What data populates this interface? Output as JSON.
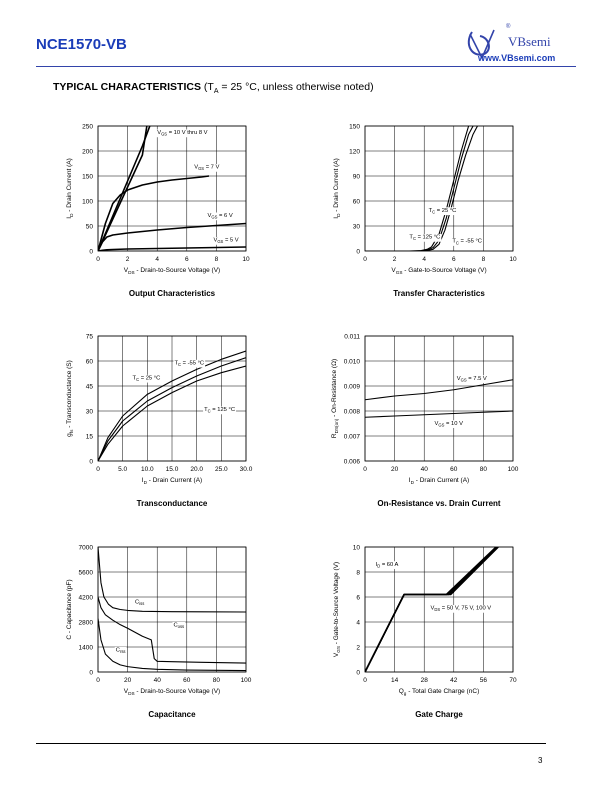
{
  "header": {
    "part_number": "NCE1570-VB",
    "logo_brand": "VBsemi",
    "logo_url": "www.VBsemi.com",
    "registered_mark": "®"
  },
  "section": {
    "title": "TYPICAL CHARACTERISTICS",
    "condition_prefix": "(T",
    "condition_sub": "A",
    "condition_suffix": " = 25 °C, unless otherwise noted)"
  },
  "footer": {
    "page_number": "3"
  },
  "colors": {
    "curve": "#000000",
    "brand": "#1a3cb8",
    "logo": "#3344aa"
  },
  "chart_data": [
    {
      "id": "output",
      "type": "line",
      "title": "Output Characteristics",
      "xlabel": {
        "main": "V",
        "sub": "DS",
        "rest": " - Drain-to-Source Voltage (V)"
      },
      "ylabel": {
        "main": "I",
        "sub": "D",
        "rest": " - Drain Current (A)"
      },
      "xlim": [
        0,
        10
      ],
      "ylim": [
        0,
        250
      ],
      "xticks": [
        0,
        2,
        4,
        6,
        8,
        10
      ],
      "yticks": [
        0,
        50,
        100,
        150,
        200,
        250
      ],
      "grid": true,
      "series": [
        {
          "name": "VGS = 10 V thru 8 V",
          "x": [
            0,
            0.5,
            1,
            1.5,
            2,
            2.5,
            3,
            3.5
          ],
          "y": [
            0,
            35,
            70,
            105,
            140,
            175,
            210,
            250
          ]
        },
        {
          "name": "VGS = 8 V",
          "x": [
            0,
            0.5,
            1,
            1.5,
            2,
            2.5,
            3,
            3.3
          ],
          "y": [
            0,
            32,
            64,
            96,
            128,
            160,
            192,
            250
          ]
        },
        {
          "name": "VGS = 7 V",
          "x": [
            0,
            0.5,
            1,
            1.5,
            2,
            3,
            4,
            5,
            6,
            7,
            7.5
          ],
          "y": [
            0,
            55,
            95,
            112,
            122,
            132,
            138,
            142,
            145,
            148,
            150
          ]
        },
        {
          "name": "VGS = 6 V",
          "x": [
            0,
            0.3,
            0.6,
            1,
            2,
            4,
            6,
            8,
            10
          ],
          "y": [
            0,
            18,
            28,
            32,
            36,
            42,
            47,
            51,
            55
          ]
        },
        {
          "name": "VGS = 5 V",
          "x": [
            0,
            0.3,
            0.6,
            1,
            2,
            4,
            6,
            8,
            10
          ],
          "y": [
            0,
            1.5,
            2.5,
            3,
            4,
            5,
            6,
            7,
            8
          ]
        }
      ],
      "annotations": [
        {
          "main": "V",
          "sub": "GS",
          "rest": " = 10 V thru 8 V",
          "x": 4.0,
          "y": 234
        },
        {
          "main": "V",
          "sub": "GS",
          "rest": " = 7 V",
          "x": 6.5,
          "y": 165
        },
        {
          "main": "V",
          "sub": "GS",
          "rest": " = 6 V",
          "x": 7.4,
          "y": 68
        },
        {
          "main": "V",
          "sub": "GS",
          "rest": " = 5 V",
          "x": 7.8,
          "y": 19
        }
      ]
    },
    {
      "id": "transfer",
      "type": "line",
      "title": "Transfer Characteristics",
      "xlabel": {
        "main": "V",
        "sub": "GS",
        "rest": " - Gate-to-Source Voltage (V)"
      },
      "ylabel": {
        "main": "I",
        "sub": "D",
        "rest": " - Drain Current (A)"
      },
      "xlim": [
        0,
        10
      ],
      "ylim": [
        0,
        150
      ],
      "xticks": [
        0,
        2,
        4,
        6,
        8,
        10
      ],
      "yticks": [
        0,
        30,
        60,
        90,
        120,
        150
      ],
      "grid": true,
      "series": [
        {
          "name": "TC = 125 °C",
          "x": [
            0,
            3,
            3.8,
            4.2,
            4.5,
            5,
            5.5,
            6,
            6.5,
            7
          ],
          "y": [
            0,
            0,
            0.5,
            2,
            5,
            20,
            50,
            85,
            120,
            150
          ]
        },
        {
          "name": "TC = 25 °C",
          "x": [
            0,
            3.6,
            4.2,
            4.6,
            5,
            5.5,
            6,
            6.5,
            7,
            7.3
          ],
          "y": [
            0,
            0,
            1,
            4,
            13,
            40,
            75,
            110,
            140,
            150
          ]
        },
        {
          "name": "TC = -55 °C",
          "x": [
            0,
            4,
            4.6,
            5,
            5.4,
            5.8,
            6.3,
            6.8,
            7.3,
            7.6
          ],
          "y": [
            0,
            0,
            2,
            8,
            25,
            50,
            85,
            115,
            140,
            150
          ]
        }
      ],
      "annotations": [
        {
          "main": "T",
          "sub": "C",
          "rest": " = 25 °C",
          "x": 4.3,
          "y": 47
        },
        {
          "main": "T",
          "sub": "C",
          "rest": " = 125 °C",
          "x": 3.0,
          "y": 15
        },
        {
          "main": "T",
          "sub": "C",
          "rest": " = -55 °C",
          "x": 5.9,
          "y": 10
        }
      ]
    },
    {
      "id": "transconductance",
      "type": "line",
      "title": "Transconductance",
      "xlabel": {
        "main": "I",
        "sub": "D",
        "rest": " - Drain Current (A)"
      },
      "ylabel": {
        "main": "g",
        "sub": "fs",
        "rest": " - Transconductance (S)"
      },
      "xlim": [
        0,
        30
      ],
      "ylim": [
        0,
        75
      ],
      "xticks": [
        0,
        5,
        10,
        15,
        20,
        25,
        30
      ],
      "xtick_labels": [
        "0",
        "5.0",
        "10.0",
        "15.0",
        "20.0",
        "25.0",
        "30.0"
      ],
      "yticks": [
        0,
        15,
        30,
        45,
        60,
        75
      ],
      "grid": true,
      "series": [
        {
          "name": "TC = -55 °C",
          "x": [
            0,
            2,
            5,
            10,
            15,
            20,
            25,
            30
          ],
          "y": [
            0,
            14,
            27,
            40,
            48,
            55,
            61,
            66
          ]
        },
        {
          "name": "TC = 25 °C",
          "x": [
            0,
            2,
            5,
            10,
            15,
            20,
            25,
            30
          ],
          "y": [
            0,
            12,
            24,
            36,
            44,
            51,
            57,
            62
          ]
        },
        {
          "name": "TC = 125 °C",
          "x": [
            0,
            2,
            5,
            10,
            15,
            20,
            25,
            30
          ],
          "y": [
            0,
            10,
            21,
            33,
            41,
            48,
            53,
            57
          ]
        }
      ],
      "annotations": [
        {
          "main": "T",
          "sub": "C",
          "rest": " = -55 °C",
          "x": 15.5,
          "y": 58
        },
        {
          "main": "T",
          "sub": "C",
          "rest": " = 25 °C",
          "x": 7.0,
          "y": 49
        },
        {
          "main": "T",
          "sub": "C",
          "rest": " = 125 °C",
          "x": 21.5,
          "y": 30
        }
      ]
    },
    {
      "id": "on_resistance",
      "type": "line",
      "title": "On-Resistance vs. Drain Current",
      "xlabel": {
        "main": "I",
        "sub": "D",
        "rest": " - Drain Current (A)"
      },
      "ylabel": {
        "main": "R",
        "sub": "DS(on)",
        "rest": " - On-Resistance (Ω)"
      },
      "xlim": [
        0,
        100
      ],
      "ylim": [
        0.006,
        0.011
      ],
      "xticks": [
        0,
        20,
        40,
        60,
        80,
        100
      ],
      "yticks": [
        0.006,
        0.007,
        0.008,
        0.009,
        0.01,
        0.011
      ],
      "ytick_labels": [
        "0.006",
        "0.007",
        "0.008",
        "0.009",
        "0.010",
        "0.011"
      ],
      "grid": true,
      "series": [
        {
          "name": "VGS = 7.5 V",
          "x": [
            0,
            20,
            40,
            60,
            80,
            100
          ],
          "y": [
            0.00845,
            0.0086,
            0.0087,
            0.00885,
            0.00905,
            0.00925
          ]
        },
        {
          "name": "VGS = 10 V",
          "x": [
            0,
            20,
            40,
            60,
            80,
            100
          ],
          "y": [
            0.00775,
            0.0078,
            0.00785,
            0.0079,
            0.00795,
            0.008
          ]
        }
      ],
      "annotations": [
        {
          "main": "V",
          "sub": "GS",
          "rest": " = 7.5 V",
          "x": 62,
          "y": 0.00925
        },
        {
          "main": "V",
          "sub": "GS",
          "rest": " = 10 V",
          "x": 47,
          "y": 0.00745
        }
      ]
    },
    {
      "id": "capacitance",
      "type": "line",
      "title": "Capacitance",
      "xlabel": {
        "main": "V",
        "sub": "DS",
        "rest": " - Drain-to-Source Voltage (V)"
      },
      "ylabel": {
        "main": "C",
        "sub": "",
        "rest": " - Capacitance (pF)"
      },
      "xlim": [
        0,
        100
      ],
      "ylim": [
        0,
        7000
      ],
      "xticks": [
        0,
        20,
        40,
        60,
        80,
        100
      ],
      "yticks": [
        0,
        1400,
        2800,
        4200,
        5600,
        7000
      ],
      "grid": true,
      "series": [
        {
          "name": "Ciss",
          "x": [
            0,
            1,
            2,
            4,
            7,
            10,
            15,
            20,
            30,
            50,
            70,
            100
          ],
          "y": [
            7000,
            6000,
            5000,
            4200,
            3800,
            3600,
            3500,
            3450,
            3400,
            3380,
            3370,
            3360
          ]
        },
        {
          "name": "Coss",
          "x": [
            0,
            2,
            5,
            10,
            15,
            20,
            30,
            36,
            38,
            40,
            50,
            70,
            100
          ],
          "y": [
            4200,
            3600,
            3200,
            2900,
            2650,
            2450,
            2000,
            1800,
            750,
            600,
            580,
            540,
            500
          ]
        },
        {
          "name": "Crss",
          "x": [
            0,
            2,
            5,
            10,
            15,
            20,
            30,
            40,
            60,
            100
          ],
          "y": [
            3000,
            1800,
            1000,
            600,
            400,
            300,
            200,
            150,
            110,
            80
          ]
        }
      ],
      "annotations": [
        {
          "main": "C",
          "sub": "iss",
          "rest": "",
          "x": 25,
          "y": 3850
        },
        {
          "main": "C",
          "sub": "oss",
          "rest": "",
          "x": 51,
          "y": 2550
        },
        {
          "main": "C",
          "sub": "rss",
          "rest": "",
          "x": 12,
          "y": 1150
        }
      ]
    },
    {
      "id": "gate_charge",
      "type": "line",
      "title": "Gate Charge",
      "xlabel": {
        "main": "Q",
        "sub": "g",
        "rest": " - Total Gate Charge (nC)"
      },
      "ylabel": {
        "main": "V",
        "sub": "GS",
        "rest": " - Gate-to-Source Voltage (V)"
      },
      "xlim": [
        0,
        70
      ],
      "ylim": [
        0,
        10
      ],
      "xticks": [
        0,
        14,
        28,
        42,
        56,
        70
      ],
      "yticks": [
        0,
        2,
        4,
        6,
        8,
        10
      ],
      "grid": true,
      "series": [
        {
          "name": "VDS = 50 V",
          "x": [
            0,
            18.5,
            38.5,
            62
          ],
          "y": [
            0,
            6.2,
            6.2,
            10
          ]
        },
        {
          "name": "VDS = 75 V",
          "x": [
            0,
            18.5,
            39.5,
            62.5
          ],
          "y": [
            0,
            6.2,
            6.2,
            10
          ]
        },
        {
          "name": "VDS = 100 V",
          "x": [
            0,
            18.5,
            40.5,
            63
          ],
          "y": [
            0,
            6.2,
            6.2,
            10
          ]
        }
      ],
      "annotations": [
        {
          "main": "I",
          "sub": "D",
          "rest": " = 60 A",
          "x": 5,
          "y": 8.5
        },
        {
          "main": "V",
          "sub": "DS",
          "rest": " = 50 V, 75 V, 100 V",
          "x": 31,
          "y": 5.0
        }
      ]
    }
  ]
}
